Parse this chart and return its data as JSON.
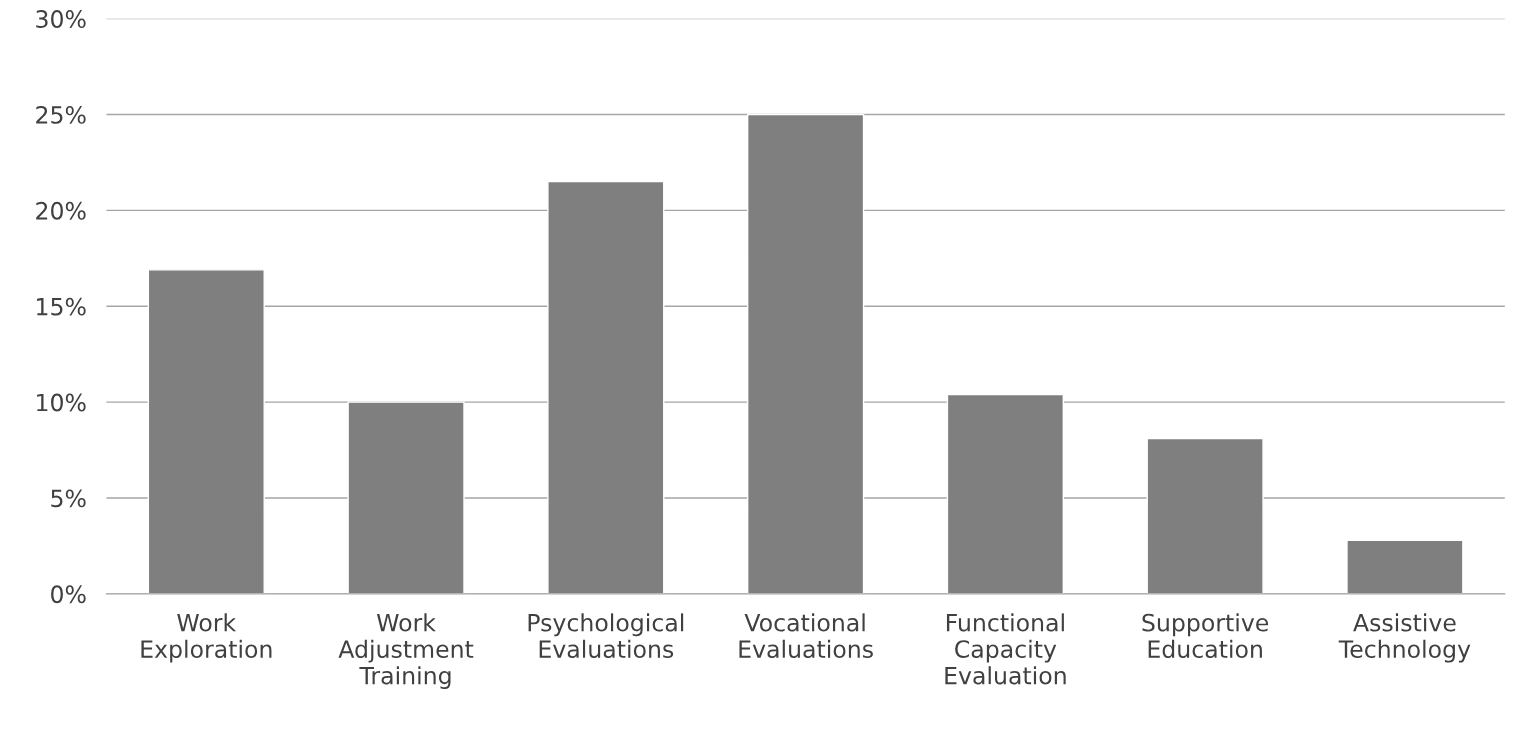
{
  "chart_data": {
    "type": "bar",
    "categories": [
      "Work\nExploration",
      "Work\nAdjustment\nTraining",
      "Psychological\nEvaluations",
      "Vocational\nEvaluations",
      "Functional\nCapacity\nEvaluation",
      "Supportive\nEducation",
      "Assistive\nTechnology"
    ],
    "values": [
      16.9,
      10.0,
      21.5,
      25.0,
      10.4,
      8.1,
      2.8
    ],
    "color": "#7f7f7f",
    "ylim": [
      0,
      30
    ],
    "yticks": [
      {
        "value": 0,
        "label": "0%"
      },
      {
        "value": 5,
        "label": "5%"
      },
      {
        "value": 10,
        "label": "10%"
      },
      {
        "value": 15,
        "label": "15%"
      },
      {
        "value": 20,
        "label": "20%"
      },
      {
        "value": 25,
        "label": "25%"
      },
      {
        "value": 30,
        "label": "30%"
      }
    ],
    "grid": "y"
  }
}
